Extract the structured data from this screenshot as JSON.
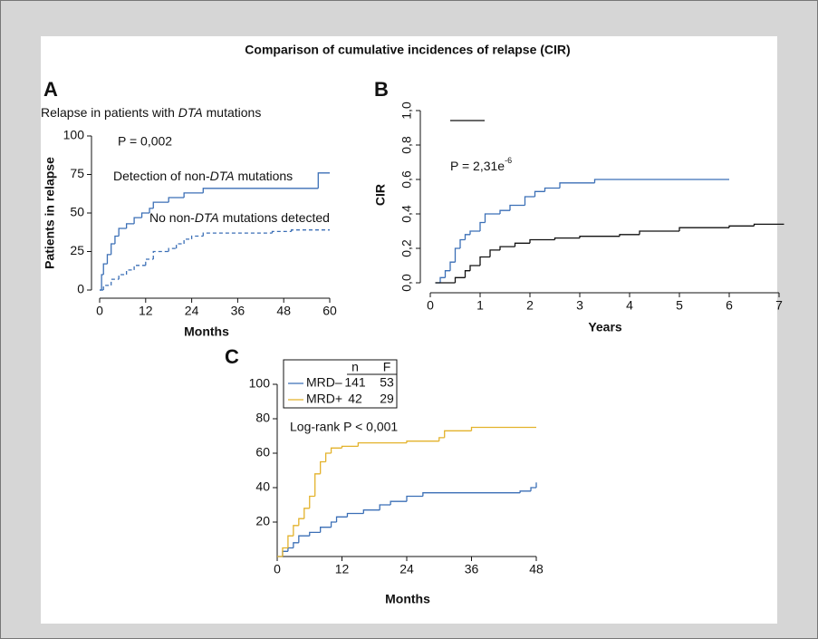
{
  "title": "Comparison of cumulative incidences of relapse (CIR)",
  "chart_data": [
    {
      "type": "step",
      "label": "A",
      "subtitle": [
        "Relapse in patients with ",
        "DTA",
        " mutations"
      ],
      "xlabel": "Months",
      "ylabel": "Patients in relapse",
      "xlim": [
        0,
        60
      ],
      "ylim": [
        0,
        100
      ],
      "xticks": [
        0,
        12,
        24,
        36,
        48,
        60
      ],
      "yticks": [
        0,
        25,
        50,
        75,
        100
      ],
      "annotations": [
        "P = 0,002",
        [
          "Detection of non-",
          "DTA",
          " mutations"
        ],
        [
          "No non-",
          "DTA",
          " mutations detected"
        ]
      ],
      "series": [
        {
          "color": "#3b6fb6",
          "line_style": "solid",
          "x": [
            0,
            0.5,
            1,
            2,
            3,
            4,
            5,
            7,
            9,
            11,
            13,
            14,
            18,
            22,
            27,
            57,
            60
          ],
          "values": [
            0,
            10,
            17,
            23,
            30,
            35,
            40,
            43,
            47,
            50,
            53,
            57,
            60,
            63,
            66,
            76,
            76
          ]
        },
        {
          "color": "#3b6fb6",
          "line_style": "dashed",
          "x": [
            0,
            1,
            3,
            5,
            7,
            9,
            12,
            14,
            18,
            20,
            22,
            24,
            27,
            45,
            50,
            60
          ],
          "values": [
            0,
            3,
            7,
            10,
            13,
            16,
            20,
            25,
            27,
            30,
            33,
            35,
            37,
            38,
            39,
            39
          ]
        }
      ]
    },
    {
      "type": "step",
      "label": "B",
      "xlabel": "Years",
      "ylabel": "CIR",
      "xlim": [
        0,
        7
      ],
      "ylim": [
        0,
        1
      ],
      "xticks": [
        0,
        1,
        2,
        3,
        4,
        5,
        6,
        7
      ],
      "yticks": [
        {
          "value": 0,
          "label": "0,0"
        },
        {
          "value": 0.2,
          "label": "0,2"
        },
        {
          "value": 0.4,
          "label": "0,4"
        },
        {
          "value": 0.6,
          "label": "0,6"
        },
        {
          "value": 0.8,
          "label": "0,8"
        },
        {
          "value": 1,
          "label": "1,0"
        }
      ],
      "annotations": [
        [
          "P = 2,31e",
          "-6"
        ]
      ],
      "series": [
        {
          "color": "#3b6fb6",
          "line_style": "solid",
          "x": [
            0.1,
            0.2,
            0.3,
            0.4,
            0.5,
            0.6,
            0.7,
            0.8,
            1.0,
            1.1,
            1.4,
            1.6,
            1.9,
            2.1,
            2.3,
            2.6,
            3.3,
            6
          ],
          "values": [
            0,
            0.03,
            0.07,
            0.12,
            0.2,
            0.25,
            0.28,
            0.3,
            0.35,
            0.4,
            0.42,
            0.45,
            0.5,
            0.53,
            0.55,
            0.58,
            0.6,
            0.6
          ]
        },
        {
          "color": "#111111",
          "line_style": "solid",
          "x": [
            0.1,
            0.5,
            0.7,
            0.8,
            1.0,
            1.2,
            1.4,
            1.7,
            2.0,
            2.5,
            3.0,
            3.8,
            4.2,
            5.0,
            6.0,
            6.5,
            7.1
          ],
          "values": [
            0,
            0.03,
            0.07,
            0.1,
            0.15,
            0.19,
            0.21,
            0.23,
            0.25,
            0.26,
            0.27,
            0.28,
            0.3,
            0.32,
            0.33,
            0.34,
            0.34
          ]
        }
      ]
    },
    {
      "type": "step",
      "label": "C",
      "xlabel": "Months",
      "xlim": [
        0,
        48
      ],
      "ylim": [
        0,
        100
      ],
      "xticks": [
        0,
        12,
        24,
        36,
        48
      ],
      "yticks": [
        20,
        40,
        60,
        80,
        100
      ],
      "annotations": [
        "Log-rank P < 0,001"
      ],
      "legend_header": [
        "n",
        "F"
      ],
      "series": [
        {
          "name": "MRD–",
          "n": 141,
          "F": 53,
          "color": "#3b6fb6",
          "line_style": "solid",
          "x": [
            0,
            1,
            2,
            3,
            4,
            6,
            8,
            10,
            11,
            13,
            16,
            19,
            21,
            24,
            27,
            45,
            47,
            48
          ],
          "values": [
            0,
            3,
            5,
            8,
            12,
            14,
            17,
            20,
            23,
            25,
            27,
            30,
            32,
            35,
            37,
            38,
            40,
            43
          ]
        },
        {
          "name": "MRD+",
          "n": 42,
          "F": 29,
          "color": "#e3b22b",
          "line_style": "solid",
          "x": [
            0,
            1,
            2,
            3,
            4,
            5,
            6,
            7,
            8,
            9,
            10,
            12,
            15,
            24,
            30,
            31,
            36,
            48
          ],
          "values": [
            0,
            5,
            12,
            18,
            22,
            28,
            35,
            48,
            55,
            60,
            63,
            64,
            66,
            67,
            69,
            73,
            75,
            75
          ]
        }
      ]
    }
  ]
}
